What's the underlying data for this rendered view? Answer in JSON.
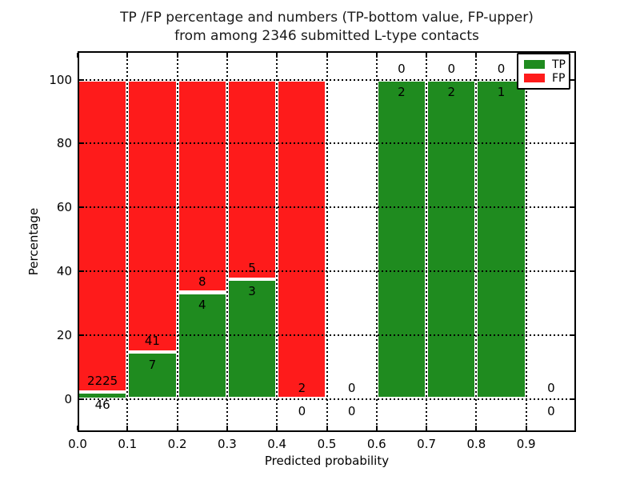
{
  "chart_data": {
    "type": "bar",
    "stacked": true,
    "title_line1": "TP /FP percentage and numbers (TP-bottom value, FP-upper)",
    "title_line2": "from among 2346 submitted L-type contacts",
    "xlabel": "Predicted probability",
    "ylabel": "Percentage",
    "xlim": [
      0.0,
      1.0
    ],
    "ylim": [
      -10.4,
      108.9
    ],
    "x_tick_values": [
      0.0,
      0.1,
      0.2,
      0.3,
      0.4,
      0.5,
      0.6,
      0.7,
      0.8,
      0.9
    ],
    "x_tick_labels": [
      "0.0",
      "0.1",
      "0.2",
      "0.3",
      "0.4",
      "0.5",
      "0.6",
      "0.7",
      "0.8",
      "0.9"
    ],
    "y_tick_values": [
      0,
      20,
      40,
      60,
      80,
      100
    ],
    "y_tick_labels": [
      "0",
      "20",
      "40",
      "60",
      "80",
      "100"
    ],
    "grid_style": "dotted",
    "bar_edge_color": "#ffffff",
    "legend": {
      "position": "upper right",
      "entries": [
        {
          "label": "TP",
          "color": "#1f8b1f"
        },
        {
          "label": "FP",
          "color": "#fe1b1b"
        }
      ]
    },
    "bins": [
      {
        "range": [
          0.0,
          0.1
        ],
        "tp": 46,
        "fp": 2225
      },
      {
        "range": [
          0.1,
          0.2
        ],
        "tp": 7,
        "fp": 41
      },
      {
        "range": [
          0.2,
          0.3
        ],
        "tp": 4,
        "fp": 8
      },
      {
        "range": [
          0.3,
          0.4
        ],
        "tp": 3,
        "fp": 5
      },
      {
        "range": [
          0.4,
          0.5
        ],
        "tp": 0,
        "fp": 2
      },
      {
        "range": [
          0.5,
          0.6
        ],
        "tp": 0,
        "fp": 0
      },
      {
        "range": [
          0.6,
          0.7
        ],
        "tp": 2,
        "fp": 0
      },
      {
        "range": [
          0.7,
          0.8
        ],
        "tp": 2,
        "fp": 0
      },
      {
        "range": [
          0.8,
          0.9
        ],
        "tp": 1,
        "fp": 0
      },
      {
        "range": [
          0.9,
          1.0
        ],
        "tp": 0,
        "fp": 0
      }
    ]
  }
}
